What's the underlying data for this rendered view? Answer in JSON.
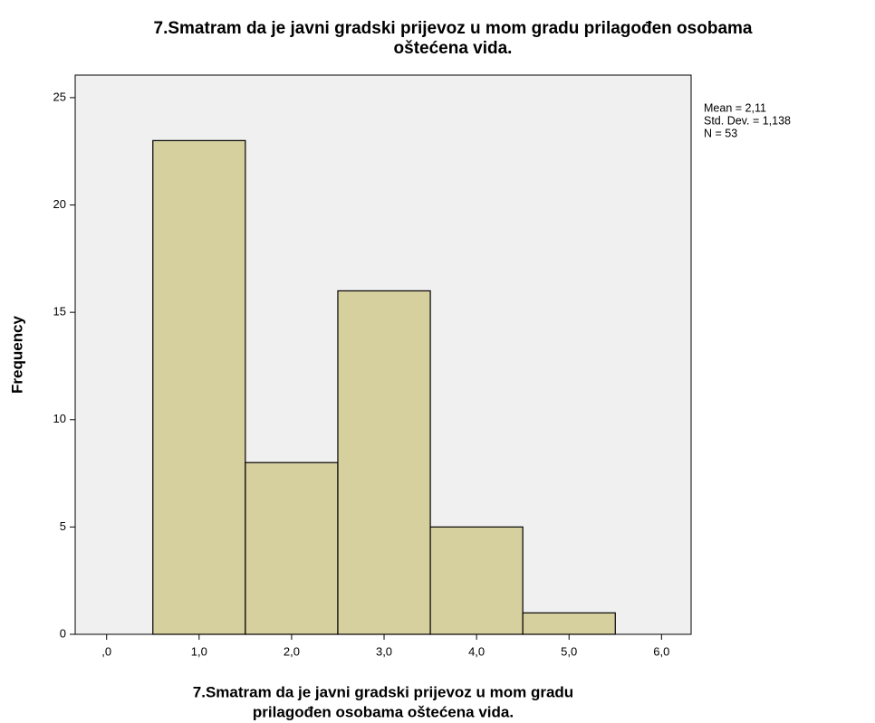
{
  "chart_data": {
    "type": "histogram",
    "title": [
      "7.Smatram da je javni gradski prijevoz u mom gradu prilagođen osobama",
      "oštećena vida."
    ],
    "xlabel": [
      "7.Smatram da je javni gradski prijevoz u mom gradu",
      "prilagođen osobama oštećena vida."
    ],
    "ylabel": "Frequency",
    "annotations": [
      "Mean = 2,11",
      "Std. Dev. = 1,138",
      "N = 53"
    ],
    "bins": [
      0.5,
      1.5,
      2.5,
      3.5,
      4.5,
      5.5
    ],
    "values": [
      23,
      8,
      16,
      5,
      1
    ],
    "color": "#d6d09f",
    "xlim": [
      -0.34,
      6.32
    ],
    "ylim": [
      0,
      26.05
    ],
    "xticks": [
      {
        "value": 0,
        "label": ",0"
      },
      {
        "value": 1,
        "label": "1,0"
      },
      {
        "value": 2,
        "label": "2,0"
      },
      {
        "value": 3,
        "label": "3,0"
      },
      {
        "value": 4,
        "label": "4,0"
      },
      {
        "value": 5,
        "label": "5,0"
      },
      {
        "value": 6,
        "label": "6,0"
      }
    ],
    "yticks": [
      0,
      5,
      10,
      15,
      20,
      25
    ]
  }
}
